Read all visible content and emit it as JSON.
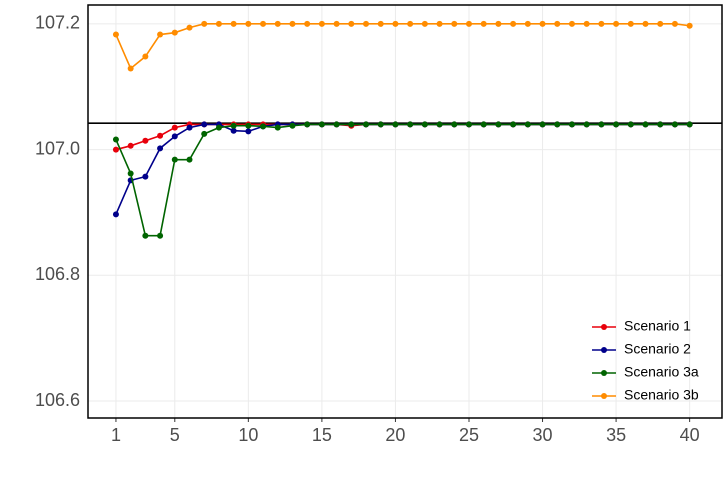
{
  "chart_data": {
    "type": "line",
    "x": [
      1,
      2,
      3,
      4,
      5,
      6,
      7,
      8,
      9,
      10,
      11,
      12,
      13,
      14,
      15,
      16,
      17,
      18,
      19,
      20,
      21,
      22,
      23,
      24,
      25,
      26,
      27,
      28,
      29,
      30,
      31,
      32,
      33,
      34,
      35,
      36,
      37,
      38,
      39,
      40
    ],
    "series": [
      {
        "name": "Scenario 1",
        "color": "#e8000b",
        "values": [
          107.0,
          107.006,
          107.014,
          107.022,
          107.035,
          107.04,
          107.04,
          107.04,
          107.04,
          107.04,
          107.04,
          107.04,
          107.04,
          107.04,
          107.04,
          107.04,
          107.038,
          107.04,
          107.04,
          107.04,
          107.04,
          107.04,
          107.04,
          107.04,
          107.04,
          107.04,
          107.04,
          107.04,
          107.04,
          107.04,
          107.04,
          107.04,
          107.04,
          107.04,
          107.04,
          107.04,
          107.04,
          107.04,
          107.04,
          107.04
        ]
      },
      {
        "name": "Scenario 2",
        "color": "#00008b",
        "values": [
          106.897,
          106.951,
          106.957,
          107.002,
          107.021,
          107.035,
          107.04,
          107.04,
          107.03,
          107.029,
          107.037,
          107.04,
          107.04,
          107.04,
          107.04,
          107.04,
          107.04,
          107.04,
          107.04,
          107.04,
          107.04,
          107.04,
          107.04,
          107.04,
          107.04,
          107.04,
          107.04,
          107.04,
          107.04,
          107.04,
          107.04,
          107.04,
          107.04,
          107.04,
          107.04,
          107.04,
          107.04,
          107.04,
          107.04,
          107.04
        ]
      },
      {
        "name": "Scenario 3a",
        "color": "#006400",
        "values": [
          107.016,
          106.962,
          106.863,
          106.863,
          106.984,
          106.984,
          107.025,
          107.035,
          107.038,
          107.038,
          107.037,
          107.035,
          107.038,
          107.04,
          107.04,
          107.04,
          107.04,
          107.04,
          107.04,
          107.04,
          107.04,
          107.04,
          107.04,
          107.04,
          107.04,
          107.04,
          107.04,
          107.04,
          107.04,
          107.04,
          107.04,
          107.04,
          107.04,
          107.04,
          107.04,
          107.04,
          107.04,
          107.04,
          107.04,
          107.04
        ]
      },
      {
        "name": "Scenario 3b",
        "color": "#ff8c00",
        "values": [
          107.183,
          107.129,
          107.148,
          107.183,
          107.186,
          107.194,
          107.2,
          107.2,
          107.2,
          107.2,
          107.2,
          107.2,
          107.2,
          107.2,
          107.2,
          107.2,
          107.2,
          107.2,
          107.2,
          107.2,
          107.2,
          107.2,
          107.2,
          107.2,
          107.2,
          107.2,
          107.2,
          107.2,
          107.2,
          107.2,
          107.2,
          107.2,
          107.2,
          107.2,
          107.2,
          107.2,
          107.2,
          107.2,
          107.2,
          107.197
        ]
      }
    ],
    "hline": 107.042,
    "xlim": [
      -0.9,
      42.2
    ],
    "xticks": [
      1,
      5,
      10,
      15,
      20,
      25,
      30,
      35,
      40
    ],
    "ylim": [
      106.573,
      107.23
    ],
    "yticks": [
      {
        "value": 106.6,
        "label": "106.6"
      },
      {
        "value": 106.8,
        "label": "106.8"
      },
      {
        "value": 107.0,
        "label": "107.0"
      },
      {
        "value": 107.2,
        "label": "107.2"
      }
    ],
    "grid": true,
    "legend": "bottom-right"
  }
}
